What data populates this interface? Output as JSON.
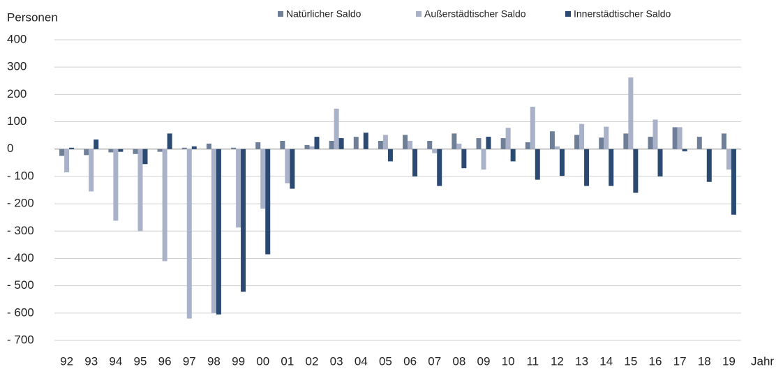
{
  "chart_data": {
    "type": "bar",
    "y_label": "Personen",
    "x_label": "Jahr",
    "categories": [
      "92",
      "93",
      "94",
      "95",
      "96",
      "97",
      "98",
      "99",
      "00",
      "01",
      "02",
      "03",
      "04",
      "05",
      "06",
      "07",
      "08",
      "09",
      "10",
      "11",
      "12",
      "13",
      "14",
      "15",
      "16",
      "17",
      "18",
      "19"
    ],
    "series": [
      {
        "name": "Natürlicher Saldo",
        "color": "#6f7f98",
        "values": [
          -25,
          -22,
          -12,
          -18,
          -10,
          5,
          20,
          5,
          25,
          30,
          15,
          30,
          45,
          30,
          52,
          30,
          57,
          40,
          40,
          25,
          65,
          52,
          42,
          57,
          45,
          80,
          45,
          57
        ]
      },
      {
        "name": "Außerstädtischer Saldo",
        "color": "#aab2ca",
        "values": [
          -85,
          -155,
          -262,
          -300,
          -410,
          -620,
          -600,
          -287,
          -218,
          -125,
          10,
          148,
          0,
          52,
          30,
          -15,
          20,
          -75,
          78,
          155,
          10,
          92,
          82,
          262,
          108,
          80,
          0,
          -75
        ]
      },
      {
        "name": "Innerstädtischer Saldo",
        "color": "#2b4a72",
        "values": [
          5,
          35,
          -10,
          -55,
          57,
          10,
          -605,
          -522,
          -385,
          -145,
          45,
          40,
          60,
          -45,
          -100,
          -135,
          -70,
          45,
          -45,
          -112,
          -98,
          -135,
          -135,
          -160,
          -100,
          -8,
          -120,
          -240
        ]
      }
    ],
    "ylim": [
      -700,
      400
    ],
    "yticks": [
      400,
      300,
      200,
      100,
      0,
      {
        "value": -100,
        "label": "- 100"
      },
      {
        "value": -200,
        "label": "- 200"
      },
      {
        "value": -300,
        "label": "- 300"
      },
      {
        "value": -400,
        "label": "- 400"
      },
      {
        "value": -500,
        "label": "- 500"
      },
      {
        "value": -600,
        "label": "- 600"
      },
      {
        "value": -700,
        "label": "- 700"
      }
    ],
    "grid": true,
    "legend": "top"
  }
}
